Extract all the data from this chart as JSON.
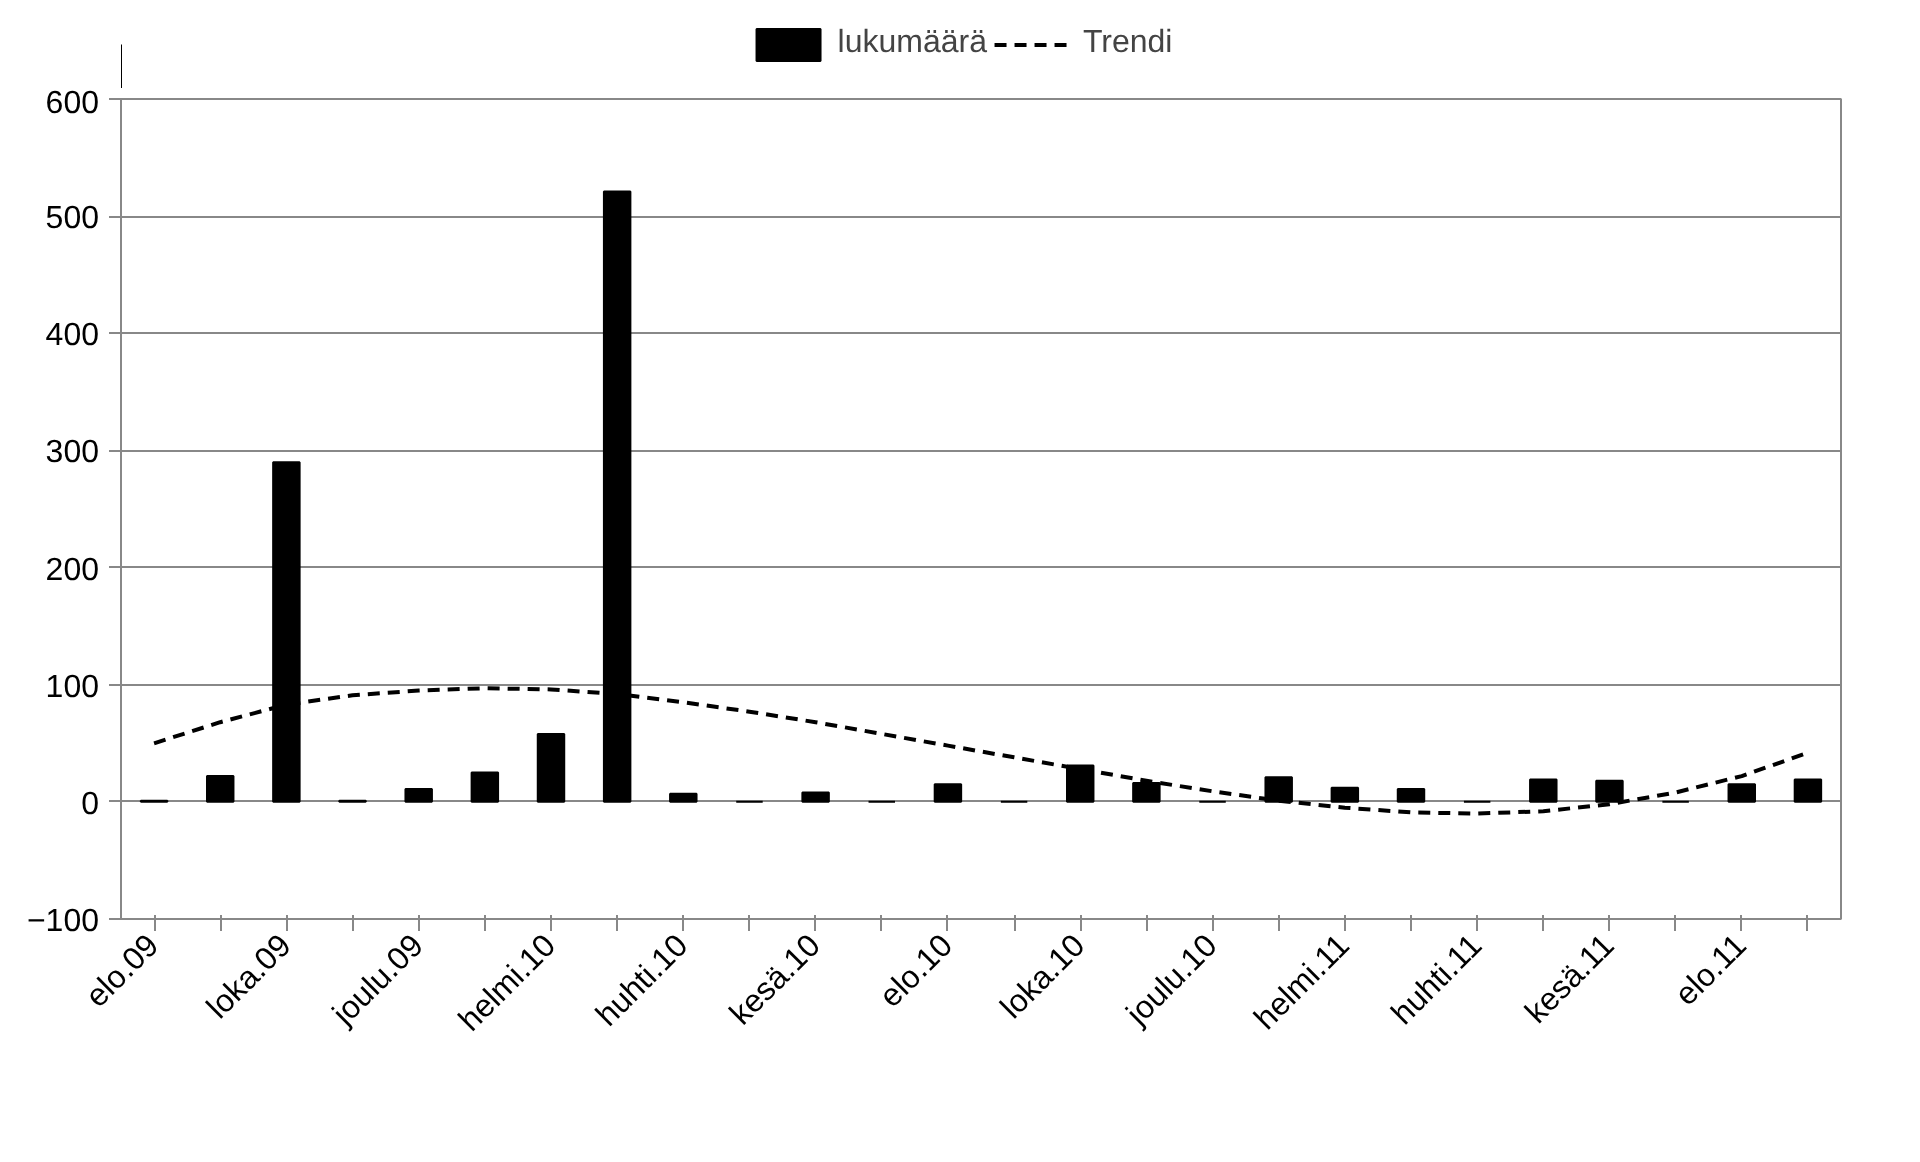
{
  "chart_data": {
    "type": "bar",
    "categories": [
      "elo.09",
      null,
      "loka.09",
      null,
      "joulu.09",
      null,
      "helmi.10",
      null,
      "huhti.10",
      null,
      "kesä.10",
      null,
      "elo.10",
      null,
      "loka.10",
      null,
      "joulu.10",
      null,
      "helmi.11",
      null,
      "huhti.11",
      null,
      "kesä.11",
      null,
      "elo.11",
      null
    ],
    "series": [
      {
        "name": "lukumäärä",
        "color": "#000000",
        "values": [
          1,
          22,
          290,
          1,
          11,
          25,
          58,
          521,
          7,
          0,
          8,
          0,
          15,
          0,
          31,
          16,
          0,
          21,
          12,
          11,
          0,
          19,
          18,
          0,
          15,
          19
        ]
      },
      {
        "name": "Trendi",
        "type": "line",
        "line_style": "dashed",
        "color": "#000000",
        "values": [
          50,
          68,
          83,
          91,
          95,
          97,
          96,
          92,
          85,
          77,
          68,
          58,
          48,
          38,
          28,
          18,
          9,
          1,
          -5,
          -9,
          -10,
          -8,
          -2,
          8,
          22,
          42
        ]
      }
    ],
    "ylim": [
      -100,
      600
    ],
    "yticks": [
      -100,
      0,
      100,
      200,
      300,
      400,
      500,
      600
    ],
    "grid": "y",
    "legend": "top"
  }
}
